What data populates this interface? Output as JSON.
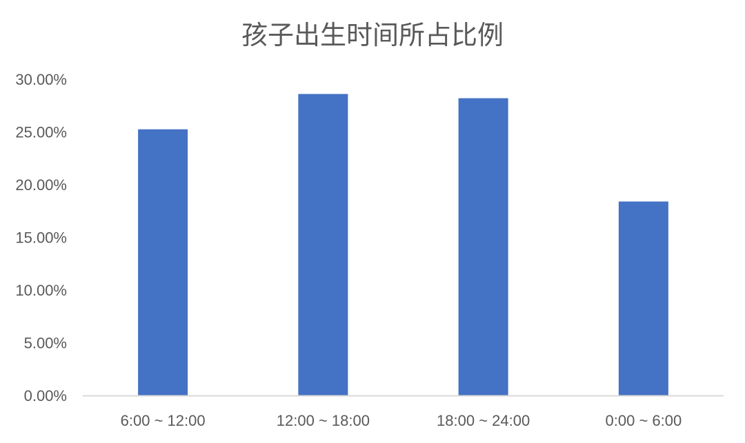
{
  "chart_data": {
    "type": "bar",
    "title": "孩子出生时间所占比例",
    "categories": [
      "6:00 ~ 12:00",
      "12:00 ~ 18:00",
      "18:00 ~ 24:00",
      "0:00 ~ 6:00"
    ],
    "values": [
      25.25,
      28.6,
      28.2,
      18.4
    ],
    "ylim": [
      0,
      30
    ],
    "yticks": [
      "0.00%",
      "5.00%",
      "10.00%",
      "15.00%",
      "20.00%",
      "25.00%",
      "30.00%"
    ],
    "xlabel": "",
    "ylabel": "",
    "grid": false,
    "legend": "none",
    "colors": {
      "bar": "#4472C4",
      "axis": "#D9D9D9",
      "text": "#595959"
    }
  }
}
